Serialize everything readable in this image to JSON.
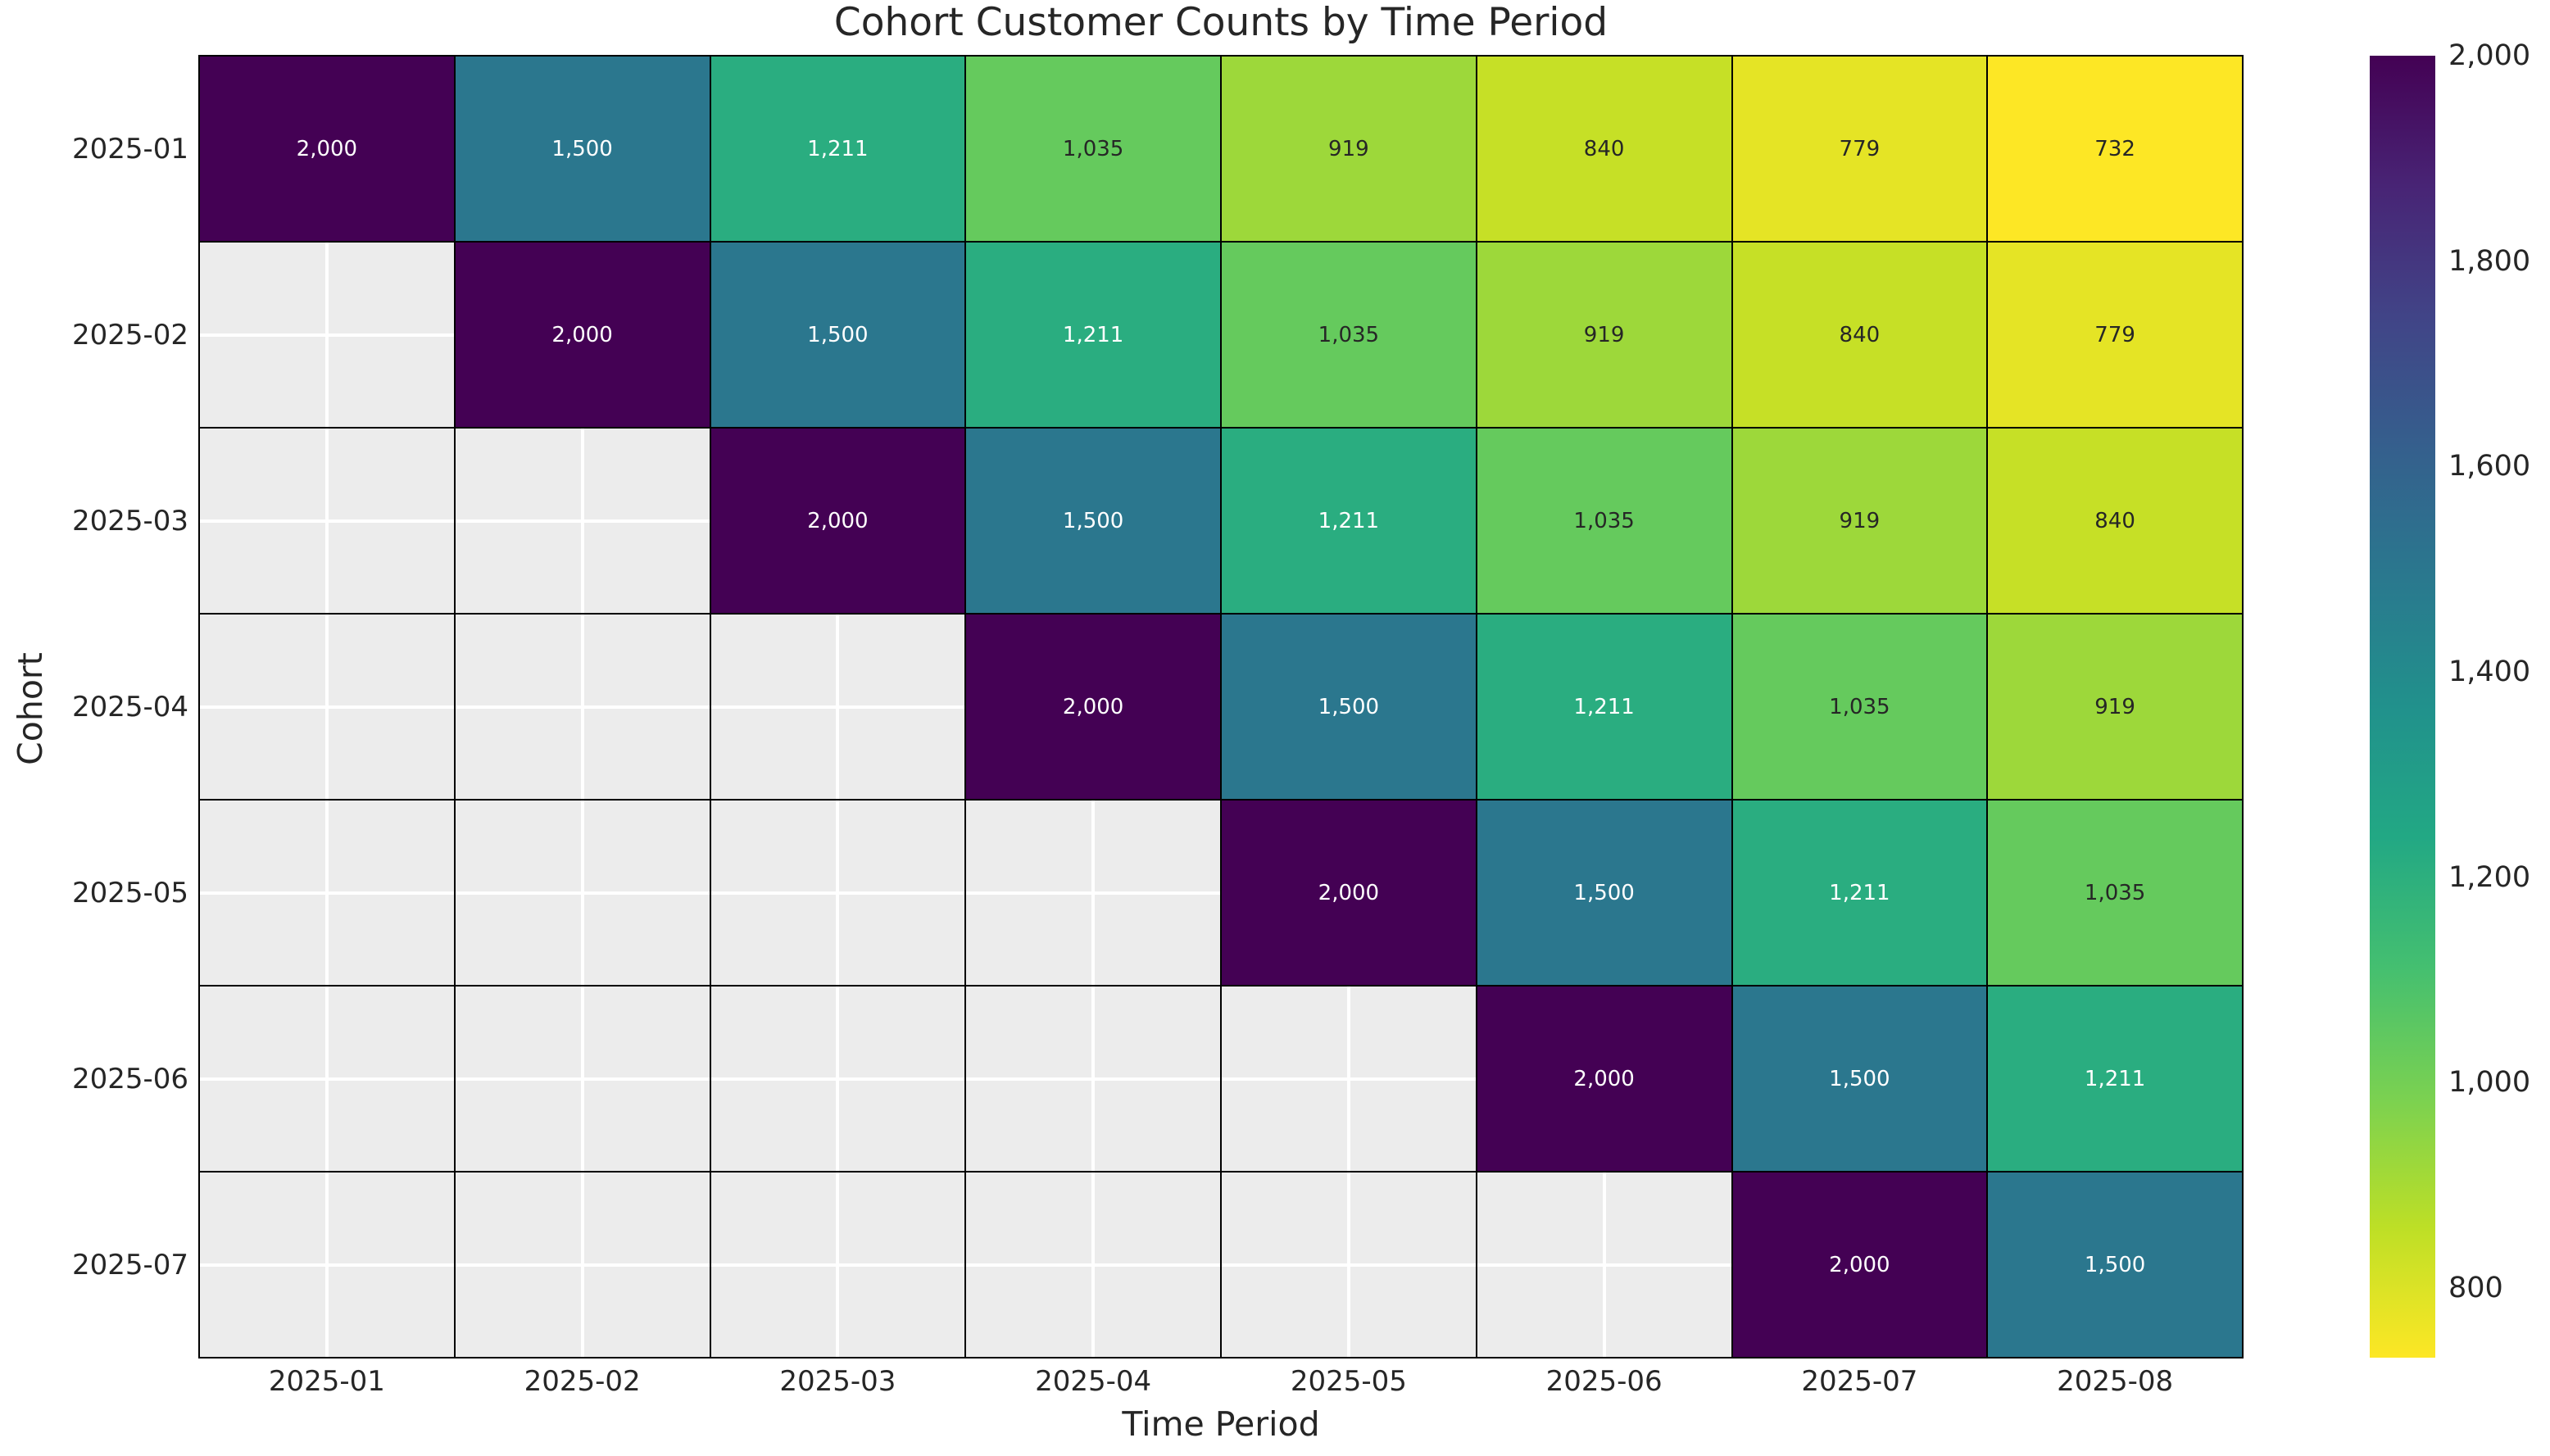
{
  "figure": {
    "background": "#ffffff",
    "plot_background": "#ececec",
    "grid_color": "#ffffff",
    "cell_border_color": "#000000",
    "text_color": "#262626",
    "annotation_dark_color": "#262626",
    "annotation_light_color": "#ffffff"
  },
  "chart_data": {
    "type": "heatmap",
    "title": "Cohort Customer Counts by Time Period",
    "xlabel": "Time Period",
    "ylabel": "Cohort",
    "x_categories": [
      "2025-01",
      "2025-02",
      "2025-03",
      "2025-04",
      "2025-05",
      "2025-06",
      "2025-07",
      "2025-08"
    ],
    "y_categories": [
      "2025-01",
      "2025-02",
      "2025-03",
      "2025-04",
      "2025-05",
      "2025-06",
      "2025-07"
    ],
    "values": [
      [
        2000,
        1500,
        1211,
        1035,
        919,
        840,
        779,
        732
      ],
      [
        null,
        2000,
        1500,
        1211,
        1035,
        919,
        840,
        779
      ],
      [
        null,
        null,
        2000,
        1500,
        1211,
        1035,
        919,
        840
      ],
      [
        null,
        null,
        null,
        2000,
        1500,
        1211,
        1035,
        919
      ],
      [
        null,
        null,
        null,
        null,
        2000,
        1500,
        1211,
        1035
      ],
      [
        null,
        null,
        null,
        null,
        null,
        2000,
        1500,
        1211
      ],
      [
        null,
        null,
        null,
        null,
        null,
        null,
        2000,
        1500
      ]
    ],
    "vmin": 732,
    "vmax": 2000,
    "colormap": "viridis_r",
    "colormap_stops": [
      [
        0.0,
        "#440154"
      ],
      [
        0.1,
        "#482475"
      ],
      [
        0.2,
        "#414487"
      ],
      [
        0.3,
        "#355f8d"
      ],
      [
        0.4,
        "#2a788e"
      ],
      [
        0.5,
        "#21918c"
      ],
      [
        0.6,
        "#22a884"
      ],
      [
        0.7,
        "#44bf70"
      ],
      [
        0.8,
        "#7ad151"
      ],
      [
        0.9,
        "#bddf26"
      ],
      [
        1.0,
        "#fde725"
      ]
    ],
    "colorbar_ticks": [
      2000,
      1800,
      1600,
      1400,
      1200,
      1000,
      800
    ],
    "colorbar_position": "right",
    "grid": true
  }
}
